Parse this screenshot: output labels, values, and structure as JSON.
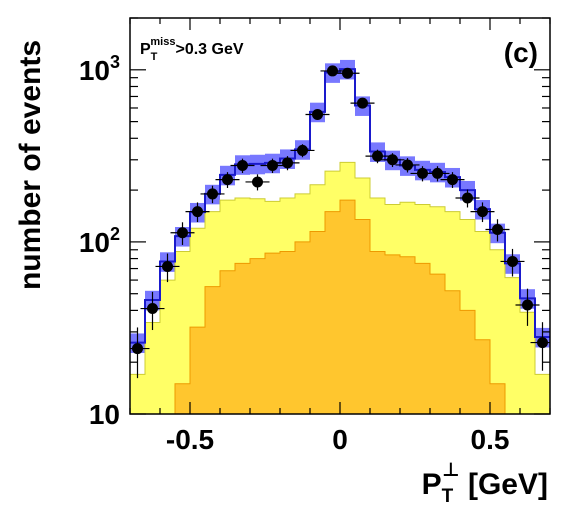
{
  "chart_data": {
    "type": "histogram",
    "panel_label": "(c)",
    "cut_label": {
      "main": "P",
      "sub": "T",
      "sup": "miss",
      "rest": ">0.3 GeV"
    },
    "xlabel": {
      "main": "P",
      "sub": "T",
      "sup": "⊥",
      "rest": " [GeV]"
    },
    "ylabel": "number of events",
    "x_ticks": [
      {
        "value": -0.5,
        "label": "-0.5"
      },
      {
        "value": 0,
        "label": "0"
      },
      {
        "value": 0.5,
        "label": "0.5"
      }
    ],
    "y_ticks": [
      {
        "value": 10,
        "label": "10",
        "exp": ""
      },
      {
        "value": 100,
        "label": "10",
        "exp": "2"
      },
      {
        "value": 1000,
        "label": "10",
        "exp": "3"
      }
    ],
    "xlim": [
      -0.7,
      0.7
    ],
    "ylim": [
      10,
      2000
    ],
    "y_scale": "log",
    "bin_edges": [
      -0.7,
      -0.65,
      -0.6,
      -0.55,
      -0.5,
      -0.45,
      -0.4,
      -0.35,
      -0.3,
      -0.25,
      -0.2,
      -0.15,
      -0.1,
      -0.05,
      0.0,
      0.05,
      0.1,
      0.15,
      0.2,
      0.25,
      0.3,
      0.35,
      0.4,
      0.45,
      0.5,
      0.55,
      0.6,
      0.65,
      0.7
    ],
    "series": [
      {
        "values": [
          26,
          46,
          77,
          108,
          149,
          190,
          245,
          282,
          284,
          288,
          305,
          345,
          570,
          965,
          1010,
          620,
          335,
          300,
          278,
          262,
          255,
          238,
          200,
          155,
          113,
          75,
          47,
          28
        ],
        "error_band_fraction": 0.13
      },
      {
        "values": [
          17,
          34,
          60,
          88,
          120,
          150,
          175,
          180,
          178,
          172,
          180,
          190,
          215,
          258,
          290,
          235,
          180,
          165,
          170,
          165,
          160,
          150,
          135,
          115,
          90,
          62,
          39,
          17
        ]
      },
      {
        "values": [
          0,
          0,
          0,
          15,
          32,
          55,
          68,
          75,
          80,
          86,
          88,
          100,
          115,
          150,
          175,
          135,
          88,
          84,
          82,
          75,
          65,
          52,
          40,
          27,
          15,
          0,
          0,
          0
        ]
      },
      {
        "x": [
          -0.675,
          -0.625,
          -0.575,
          -0.525,
          -0.475,
          -0.425,
          -0.375,
          -0.325,
          -0.275,
          -0.225,
          -0.175,
          -0.125,
          -0.075,
          -0.025,
          0.025,
          0.075,
          0.125,
          0.175,
          0.225,
          0.275,
          0.325,
          0.375,
          0.425,
          0.475,
          0.525,
          0.575,
          0.625,
          0.675
        ],
        "y": [
          24,
          41,
          72,
          113,
          150,
          190,
          230,
          278,
          223,
          278,
          288,
          340,
          550,
          985,
          955,
          640,
          315,
          300,
          280,
          250,
          250,
          230,
          180,
          150,
          118,
          77,
          43,
          26
        ]
      }
    ],
    "colors": {
      "data_points": "#000000",
      "total_line": "#1a1acc",
      "error_band": "#7878ff",
      "component_1": "#ffff66",
      "component_2": "#ffc62e",
      "component_2_edge": "#ee9900"
    }
  }
}
